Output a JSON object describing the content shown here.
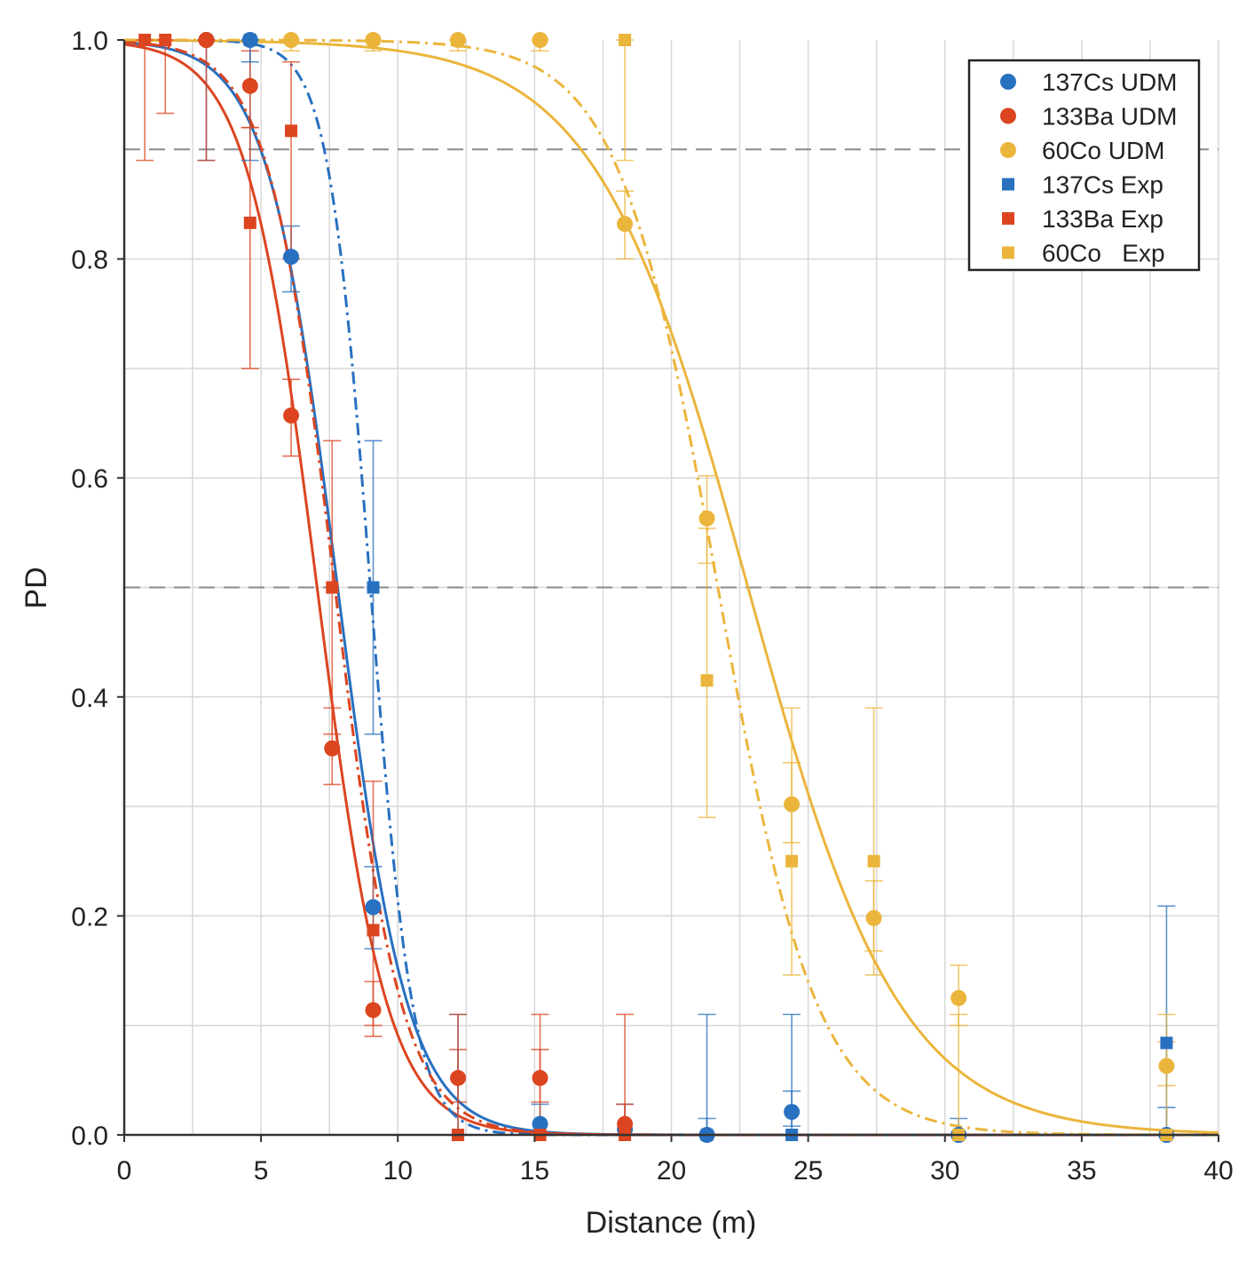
{
  "chart_data": {
    "type": "scatter",
    "title": "",
    "xlabel": "Distance (m)",
    "ylabel": "PD",
    "xlim": [
      0,
      40
    ],
    "ylim": [
      0,
      1.0
    ],
    "xticks": [
      0,
      5,
      10,
      15,
      20,
      25,
      30,
      35,
      40
    ],
    "yticks": [
      0.0,
      0.2,
      0.4,
      0.6,
      0.8,
      1.0
    ],
    "xtick_labels": [
      "0",
      "5",
      "10",
      "15",
      "20",
      "25",
      "30",
      "35",
      "40"
    ],
    "ytick_labels": [
      "0.0",
      "0.2",
      "0.4",
      "0.6",
      "0.8",
      "1.0"
    ],
    "grid": true,
    "reference_lines": [
      0.9,
      0.5
    ],
    "legend_position": "top-right",
    "colors": {
      "cs": "#2870c0",
      "ba": "#dc4520",
      "co": "#ebb53c"
    },
    "series": [
      {
        "name": "137Cs UDM",
        "legend": "137Cs UDM",
        "color": "#2870c0",
        "marker": "circle",
        "points": [
          {
            "x": 3.0,
            "y": 1.0,
            "lo": 0.89,
            "hi": 1.0
          },
          {
            "x": 4.6,
            "y": 1.0,
            "lo": 0.89,
            "hi": 1.0
          },
          {
            "x": 6.1,
            "y": 0.802,
            "lo": 0.77,
            "hi": 0.83
          },
          {
            "x": 9.1,
            "y": 0.208,
            "lo": 0.17,
            "hi": 0.245
          },
          {
            "x": 15.2,
            "y": 0.01,
            "lo": 0.0,
            "hi": 0.028
          },
          {
            "x": 18.3,
            "y": 0.005,
            "lo": 0.0,
            "hi": 0.028
          },
          {
            "x": 21.3,
            "y": 0.0,
            "lo": 0.0,
            "hi": 0.015
          },
          {
            "x": 24.4,
            "y": 0.021,
            "lo": 0.008,
            "hi": 0.04
          },
          {
            "x": 30.5,
            "y": 0.0,
            "lo": 0.0,
            "hi": 0.015
          },
          {
            "x": 38.1,
            "y": 0.0,
            "lo": 0.0,
            "hi": 0.025
          }
        ]
      },
      {
        "name": "133Ba UDM",
        "legend": "133Ba UDM",
        "color": "#dc4520",
        "marker": "circle",
        "points": [
          {
            "x": 3.0,
            "y": 1.0,
            "lo": 0.89,
            "hi": 1.0
          },
          {
            "x": 4.6,
            "y": 0.958,
            "lo": 0.92,
            "hi": 0.99
          },
          {
            "x": 6.1,
            "y": 0.657,
            "lo": 0.62,
            "hi": 0.69
          },
          {
            "x": 7.6,
            "y": 0.353,
            "lo": 0.32,
            "hi": 0.39
          },
          {
            "x": 9.1,
            "y": 0.114,
            "lo": 0.09,
            "hi": 0.14
          },
          {
            "x": 12.2,
            "y": 0.052,
            "lo": 0.03,
            "hi": 0.078
          },
          {
            "x": 15.2,
            "y": 0.052,
            "lo": 0.03,
            "hi": 0.078
          },
          {
            "x": 18.3,
            "y": 0.01,
            "lo": 0.0,
            "hi": 0.028
          }
        ]
      },
      {
        "name": "60Co UDM",
        "legend": "60Co UDM",
        "color": "#ebb53c",
        "marker": "circle",
        "points": [
          {
            "x": 6.1,
            "y": 1.0,
            "lo": 0.99,
            "hi": 1.0
          },
          {
            "x": 9.1,
            "y": 1.0,
            "lo": 0.99,
            "hi": 1.0
          },
          {
            "x": 12.2,
            "y": 1.0,
            "lo": 0.99,
            "hi": 1.0
          },
          {
            "x": 15.2,
            "y": 1.0,
            "lo": 0.99,
            "hi": 1.0
          },
          {
            "x": 18.3,
            "y": 0.832,
            "lo": 0.8,
            "hi": 0.862
          },
          {
            "x": 21.3,
            "y": 0.563,
            "lo": 0.522,
            "hi": 0.602
          },
          {
            "x": 24.4,
            "y": 0.302,
            "lo": 0.267,
            "hi": 0.34
          },
          {
            "x": 27.4,
            "y": 0.198,
            "lo": 0.168,
            "hi": 0.232
          },
          {
            "x": 30.5,
            "y": 0.125,
            "lo": 0.1,
            "hi": 0.155
          },
          {
            "x": 38.1,
            "y": 0.063,
            "lo": 0.045,
            "hi": 0.085
          }
        ]
      },
      {
        "name": "137Cs Exp",
        "legend": "137Cs Exp",
        "color": "#2870c0",
        "marker": "square",
        "points": [
          {
            "x": 4.6,
            "y": 1.0,
            "lo": 0.98,
            "hi": 1.0
          },
          {
            "x": 9.1,
            "y": 0.5,
            "lo": 0.366,
            "hi": 0.634
          },
          {
            "x": 12.2,
            "y": 0.0,
            "lo": 0.0,
            "hi": 0.11
          },
          {
            "x": 21.3,
            "y": 0.0,
            "lo": 0.0,
            "hi": 0.11
          },
          {
            "x": 24.4,
            "y": 0.0,
            "lo": 0.0,
            "hi": 0.11
          },
          {
            "x": 38.1,
            "y": 0.084,
            "lo": 0.0,
            "hi": 0.209
          }
        ]
      },
      {
        "name": "133Ba Exp",
        "legend": "133Ba Exp",
        "color": "#dc4520",
        "marker": "square",
        "points": [
          {
            "x": 0.75,
            "y": 1.0,
            "lo": 0.89,
            "hi": 1.0
          },
          {
            "x": 1.5,
            "y": 1.0,
            "lo": 0.933,
            "hi": 1.0
          },
          {
            "x": 4.6,
            "y": 0.833,
            "lo": 0.7,
            "hi": 0.92
          },
          {
            "x": 6.1,
            "y": 0.917,
            "lo": 0.8,
            "hi": 0.98
          },
          {
            "x": 7.6,
            "y": 0.5,
            "lo": 0.366,
            "hi": 0.634
          },
          {
            "x": 9.1,
            "y": 0.187,
            "lo": 0.1,
            "hi": 0.323
          },
          {
            "x": 12.2,
            "y": 0.0,
            "lo": 0.0,
            "hi": 0.11
          },
          {
            "x": 15.2,
            "y": 0.0,
            "lo": 0.0,
            "hi": 0.11
          },
          {
            "x": 18.3,
            "y": 0.0,
            "lo": 0.0,
            "hi": 0.11
          }
        ]
      },
      {
        "name": "60Co Exp",
        "legend": "60Co   Exp",
        "color": "#ebb53c",
        "marker": "square",
        "points": [
          {
            "x": 18.3,
            "y": 1.0,
            "lo": 0.89,
            "hi": 1.0
          },
          {
            "x": 21.3,
            "y": 0.415,
            "lo": 0.29,
            "hi": 0.554
          },
          {
            "x": 24.4,
            "y": 0.25,
            "lo": 0.146,
            "hi": 0.39
          },
          {
            "x": 27.4,
            "y": 0.25,
            "lo": 0.146,
            "hi": 0.39
          },
          {
            "x": 30.5,
            "y": 0.0,
            "lo": 0.0,
            "hi": 0.11
          },
          {
            "x": 38.1,
            "y": 0.0,
            "lo": 0.0,
            "hi": 0.11
          }
        ]
      }
    ],
    "fit_curves": [
      {
        "name": "137Cs UDM fit",
        "color": "#2870c0",
        "style": "solid",
        "x50": 7.8,
        "k": 0.78
      },
      {
        "name": "133Ba UDM fit",
        "color": "#dc4520",
        "style": "solid",
        "x50": 7.05,
        "k": 0.78
      },
      {
        "name": "60Co UDM fit",
        "color": "#ebb53c",
        "style": "solid",
        "x50": 22.8,
        "k": 0.36
      },
      {
        "name": "137Cs Exp fit",
        "color": "#2870c0",
        "style": "dashdot",
        "x50": 9.0,
        "k": 1.3
      },
      {
        "name": "133Ba Exp fit",
        "color": "#dc4520",
        "style": "dashdot",
        "x50": 7.7,
        "k": 0.82
      },
      {
        "name": "60Co Exp fit",
        "color": "#ebb53c",
        "style": "dashdot",
        "x50": 21.7,
        "k": 0.55
      }
    ]
  }
}
